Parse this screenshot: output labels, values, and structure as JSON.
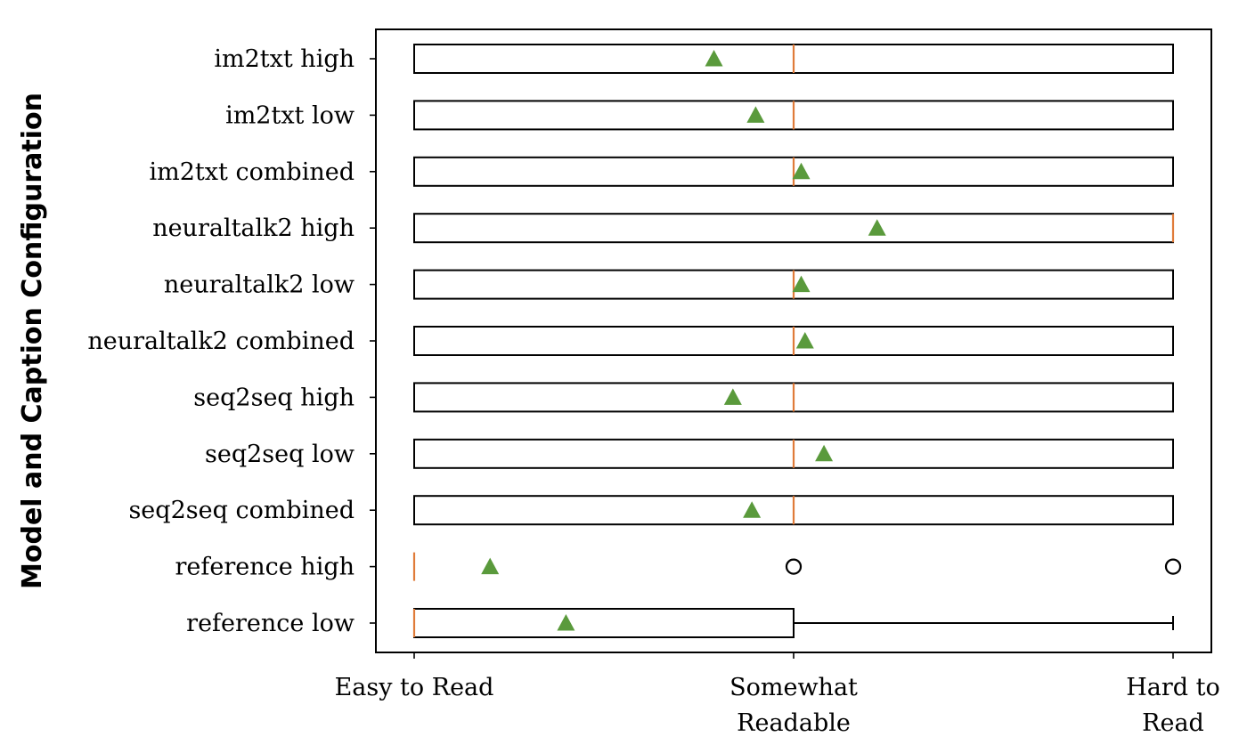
{
  "chart_data": {
    "type": "boxplot",
    "orientation": "horizontal",
    "ylabel": "Model and Caption Configuration",
    "xlabel": "",
    "x_ticks": [
      {
        "value": 0,
        "lines": [
          "Easy to Read"
        ]
      },
      {
        "value": 1,
        "lines": [
          "Somewhat",
          "Readable"
        ]
      },
      {
        "value": 2,
        "lines": [
          "Hard to",
          "Read"
        ]
      }
    ],
    "xlim": [
      -0.1,
      2.1
    ],
    "grid": false,
    "colors": {
      "box": "#000000",
      "median": "#e07b39",
      "mean": "#5a9a3c",
      "outlier": "#000000"
    },
    "categories": [
      {
        "label": "im2txt high",
        "q1": 0,
        "median": 1,
        "q3": 2,
        "whisker_low": 0,
        "whisker_high": 2,
        "mean": 0.79,
        "outliers": []
      },
      {
        "label": "im2txt low",
        "q1": 0,
        "median": 1,
        "q3": 2,
        "whisker_low": 0,
        "whisker_high": 2,
        "mean": 0.9,
        "outliers": []
      },
      {
        "label": "im2txt combined",
        "q1": 0,
        "median": 1,
        "q3": 2,
        "whisker_low": 0,
        "whisker_high": 2,
        "mean": 1.02,
        "outliers": []
      },
      {
        "label": "neuraltalk2 high",
        "q1": 0,
        "median": 2,
        "q3": 2,
        "whisker_low": 0,
        "whisker_high": 2,
        "mean": 1.22,
        "outliers": []
      },
      {
        "label": "neuraltalk2 low",
        "q1": 0,
        "median": 1,
        "q3": 2,
        "whisker_low": 0,
        "whisker_high": 2,
        "mean": 1.02,
        "outliers": []
      },
      {
        "label": "neuraltalk2 combined",
        "q1": 0,
        "median": 1,
        "q3": 2,
        "whisker_low": 0,
        "whisker_high": 2,
        "mean": 1.03,
        "outliers": []
      },
      {
        "label": "seq2seq high",
        "q1": 0,
        "median": 1,
        "q3": 2,
        "whisker_low": 0,
        "whisker_high": 2,
        "mean": 0.84,
        "outliers": []
      },
      {
        "label": "seq2seq low",
        "q1": 0,
        "median": 1,
        "q3": 2,
        "whisker_low": 0,
        "whisker_high": 2,
        "mean": 1.08,
        "outliers": []
      },
      {
        "label": "seq2seq combined",
        "q1": 0,
        "median": 1,
        "q3": 2,
        "whisker_low": 0,
        "whisker_high": 2,
        "mean": 0.89,
        "outliers": []
      },
      {
        "label": "reference high",
        "q1": 0,
        "median": 0,
        "q3": 0,
        "whisker_low": 0,
        "whisker_high": 0,
        "mean": 0.2,
        "outliers": [
          1,
          2
        ]
      },
      {
        "label": "reference low",
        "q1": 0,
        "median": 0,
        "q3": 1,
        "whisker_low": 0,
        "whisker_high": 2,
        "mean": 0.4,
        "outliers": []
      }
    ]
  }
}
